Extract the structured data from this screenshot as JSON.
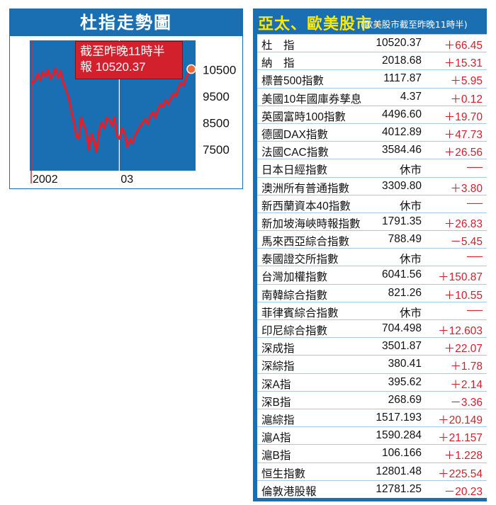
{
  "chart_panel": {
    "title": "杜指走勢圖",
    "annotation": {
      "line1": "截至昨晚11時半",
      "line2": "報 10520.37"
    },
    "colors": {
      "title_bg": "#1a6fb3",
      "plot_bg": "#1a6fb3",
      "line": "#e0202c",
      "marker": "#f06a35"
    }
  },
  "chart_data": {
    "type": "line",
    "title": "杜指走勢圖",
    "xlabel": "",
    "ylabel": "",
    "x_ticks": [
      "2002",
      "03"
    ],
    "y_ticks": [
      7500,
      8500,
      9500,
      10500
    ],
    "ylim": [
      6700,
      11600
    ],
    "grid": "vertical",
    "series": [
      {
        "values": [
          10000,
          10100,
          10350,
          10100,
          10400,
          10250,
          10500,
          10150,
          10300,
          10550,
          10200,
          10450,
          10000,
          9750,
          9500,
          9000,
          8600,
          8000,
          7900,
          8700,
          8400,
          8200,
          7500,
          8100,
          7800,
          7400,
          8200,
          8500,
          8300,
          8700,
          8600,
          8400,
          8700,
          8000,
          7900,
          8300,
          8100,
          7600,
          7900,
          7750,
          8000,
          8200,
          8350,
          8500,
          8650,
          8450,
          8750,
          8900,
          8700,
          9000,
          9200,
          9100,
          9350,
          9200,
          9400,
          9600,
          9500,
          9800,
          10000,
          9900,
          10200,
          10400,
          10520
        ]
      }
    ],
    "last_value": 10520.37
  },
  "table": {
    "title": "亞太、歐美股市",
    "subtitle": "(歐美股市截至昨晚11時半)",
    "rows": [
      {
        "name": "杜　指",
        "value": "10520.37",
        "change": "＋66.45"
      },
      {
        "name": "納　指",
        "value": "2018.68",
        "change": "＋15.31"
      },
      {
        "name": "標普500指數",
        "value": "1117.87",
        "change": "＋5.95"
      },
      {
        "name": "美國10年國庫券孳息",
        "value": "4.37",
        "change": "＋0.12"
      },
      {
        "name": "英國富時100指數",
        "value": "4496.60",
        "change": "＋19.70"
      },
      {
        "name": "德國DAX指數",
        "value": "4012.89",
        "change": "＋47.73"
      },
      {
        "name": "法國CAC指數",
        "value": "3584.46",
        "change": "＋26.56"
      },
      {
        "name": "日本日經指數",
        "value": "休市",
        "change": "──"
      },
      {
        "name": "澳洲所有普通指數",
        "value": "3309.80",
        "change": "＋3.80"
      },
      {
        "name": "新西蘭資本40指數",
        "value": "休市",
        "change": "──"
      },
      {
        "name": "新加坡海峽時報指數",
        "value": "1791.35",
        "change": "＋26.83"
      },
      {
        "name": "馬來西亞綜合指數",
        "value": "788.49",
        "change": "－5.45"
      },
      {
        "name": "泰國證交所指數",
        "value": "休市",
        "change": "──"
      },
      {
        "name": "台灣加權指數",
        "value": "6041.56",
        "change": "＋150.87"
      },
      {
        "name": "南韓綜合指數",
        "value": "821.26",
        "change": "＋10.55"
      },
      {
        "name": "菲律賓綜合指數",
        "value": "休市",
        "change": "──"
      },
      {
        "name": "印尼綜合指數",
        "value": "704.498",
        "change": "＋12.603"
      },
      {
        "name": "深成指",
        "value": "3501.87",
        "change": "＋22.07"
      },
      {
        "name": "深綜指",
        "value": "380.41",
        "change": "＋1.78"
      },
      {
        "name": "深A指",
        "value": "395.62",
        "change": "＋2.14"
      },
      {
        "name": "深B指",
        "value": "268.69",
        "change": "－3.36"
      },
      {
        "name": "滬綜指",
        "value": "1517.193",
        "change": "＋20.149"
      },
      {
        "name": "滬A指",
        "value": "1590.284",
        "change": "＋21.157"
      },
      {
        "name": "滬B指",
        "value": "106.166",
        "change": "＋1.228"
      },
      {
        "name": "恒生指數",
        "value": "12801.48",
        "change": "＋225.54"
      },
      {
        "name": "倫敦港股報",
        "value": "12781.25",
        "change": "－20.23"
      }
    ],
    "colors": {
      "header_bg": "#1a6fb3",
      "title_text": "#ffe900",
      "change_text": "#d2202c"
    }
  }
}
